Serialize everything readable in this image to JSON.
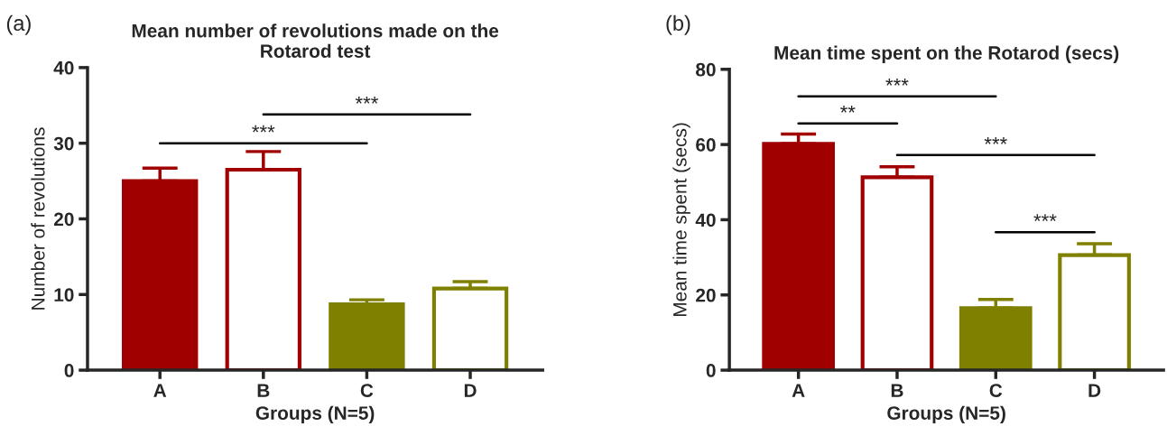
{
  "chart_data": [
    {
      "type": "bar",
      "title": "Mean number of revolutions made on the\nRotarod test",
      "xlabel": "Groups (N=5)",
      "ylabel": "Number of revolutions",
      "categories": [
        "A",
        "B",
        "C",
        "D"
      ],
      "ylim": [
        0,
        40
      ],
      "yticks": [
        0,
        10,
        20,
        30,
        40
      ],
      "grid": false,
      "legend": false,
      "series": [
        {
          "color": "#a00000",
          "colors": [
            "#a00000",
            "#ffffff",
            null,
            null
          ],
          "values": [
            25,
            26.5,
            null,
            null
          ],
          "errors": [
            [
              25,
              26.7
            ],
            [
              26.5,
              28.9
            ],
            null,
            null
          ]
        },
        {
          "color": "#808000",
          "colors": [
            null,
            null,
            "#808000",
            "#ffffff"
          ],
          "values": [
            null,
            null,
            8.7,
            10.8
          ],
          "errors": [
            null,
            null,
            [
              8.7,
              9.3
            ],
            [
              10.8,
              11.7
            ]
          ]
        }
      ],
      "annotations": [
        "(a)",
        "***",
        "***"
      ]
    },
    {
      "type": "bar",
      "title": "Mean time spent on the Rotarod (secs)",
      "xlabel": "Groups (N=5)",
      "ylabel": "Mean time spent (secs)",
      "categories": [
        "A",
        "B",
        "C",
        "D"
      ],
      "ylim": [
        0,
        80
      ],
      "yticks": [
        0,
        20,
        40,
        60,
        80
      ],
      "grid": false,
      "legend": false,
      "series": [
        {
          "color": "#a00000",
          "colors": [
            "#a00000",
            "#ffffff",
            null,
            null
          ],
          "values": [
            60.2,
            51.3,
            null,
            null
          ],
          "errors": [
            [
              60.2,
              62.8
            ],
            [
              51.3,
              54.1
            ],
            null,
            null
          ]
        },
        {
          "color": "#808000",
          "colors": [
            null,
            null,
            "#808000",
            "#ffffff"
          ],
          "values": [
            null,
            null,
            16.5,
            30.6
          ],
          "errors": [
            null,
            null,
            [
              16.5,
              18.8
            ],
            [
              30.6,
              33.6
            ]
          ]
        }
      ],
      "annotations": [
        "(b)",
        "***",
        "**",
        "***",
        "***"
      ]
    }
  ]
}
